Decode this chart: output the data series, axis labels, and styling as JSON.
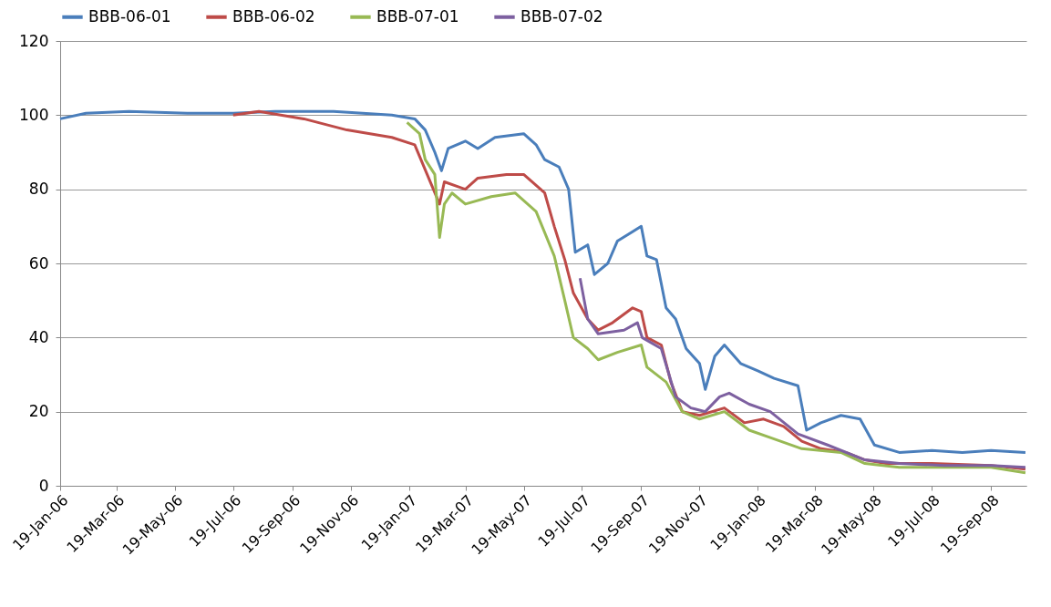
{
  "chart_data": {
    "type": "line",
    "legend": "top",
    "grid": "y",
    "line_style": "solid",
    "marker": "none",
    "xlim": [
      "2006-01-19",
      "2008-10-26"
    ],
    "ylim": [
      0,
      120
    ],
    "yticks": [
      0,
      20,
      40,
      60,
      80,
      100,
      120
    ],
    "xticks": [
      {
        "value": "2006-01-19",
        "label": "19-Jan-06"
      },
      {
        "value": "2006-03-19",
        "label": "19-Mar-06"
      },
      {
        "value": "2006-05-19",
        "label": "19-May-06"
      },
      {
        "value": "2006-07-19",
        "label": "19-Jul-06"
      },
      {
        "value": "2006-09-19",
        "label": "19-Sep-06"
      },
      {
        "value": "2006-11-19",
        "label": "19-Nov-06"
      },
      {
        "value": "2007-01-19",
        "label": "19-Jan-07"
      },
      {
        "value": "2007-03-19",
        "label": "19-Mar-07"
      },
      {
        "value": "2007-05-19",
        "label": "19-May-07"
      },
      {
        "value": "2007-07-19",
        "label": "19-Jul-07"
      },
      {
        "value": "2007-09-19",
        "label": "19-Sep-07"
      },
      {
        "value": "2007-11-19",
        "label": "19-Nov-07"
      },
      {
        "value": "2008-01-19",
        "label": "19-Jan-08"
      },
      {
        "value": "2008-03-19",
        "label": "19-Mar-08"
      },
      {
        "value": "2008-05-19",
        "label": "19-May-08"
      },
      {
        "value": "2008-07-19",
        "label": "19-Jul-08"
      },
      {
        "value": "2008-09-19",
        "label": "19-Sep-08"
      }
    ],
    "series": [
      {
        "name": "BBB-06-01",
        "color": "#4a7ebb",
        "x": [
          "2006-01-19",
          "2006-02-15",
          "2006-04-01",
          "2006-06-01",
          "2006-07-19",
          "2006-09-01",
          "2006-11-01",
          "2007-01-01",
          "2007-01-25",
          "2007-02-05",
          "2007-02-15",
          "2007-02-22",
          "2007-03-01",
          "2007-03-19",
          "2007-04-01",
          "2007-04-19",
          "2007-05-19",
          "2007-06-01",
          "2007-06-10",
          "2007-06-25",
          "2007-07-05",
          "2007-07-12",
          "2007-07-25",
          "2007-08-01",
          "2007-08-15",
          "2007-08-25",
          "2007-09-19",
          "2007-09-25",
          "2007-10-05",
          "2007-10-15",
          "2007-10-25",
          "2007-11-05",
          "2007-11-19",
          "2007-11-25",
          "2007-12-05",
          "2007-12-15",
          "2008-01-01",
          "2008-01-19",
          "2008-02-05",
          "2008-03-01",
          "2008-03-10",
          "2008-03-25",
          "2008-04-15",
          "2008-05-05",
          "2008-05-20",
          "2008-06-15",
          "2008-07-19",
          "2008-08-20",
          "2008-09-19",
          "2008-10-25"
        ],
        "values": [
          99,
          100.5,
          101,
          100.5,
          100.5,
          101,
          101,
          100,
          99,
          96,
          90,
          85,
          91,
          93,
          91,
          94,
          95,
          92,
          88,
          86,
          80,
          63,
          65,
          57,
          60,
          66,
          70,
          62,
          61,
          48,
          45,
          37,
          33,
          26,
          35,
          38,
          33,
          31,
          29,
          27,
          15,
          17,
          19,
          18,
          11,
          9,
          9.5,
          9,
          9.5,
          9
        ]
      },
      {
        "name": "BBB-06-02",
        "color": "#be4b48",
        "x": [
          "2006-07-19",
          "2006-08-15",
          "2006-10-01",
          "2006-11-15",
          "2007-01-01",
          "2007-01-25",
          "2007-02-20",
          "2007-02-25",
          "2007-03-19",
          "2007-04-01",
          "2007-05-01",
          "2007-05-19",
          "2007-06-10",
          "2007-06-20",
          "2007-07-01",
          "2007-07-10",
          "2007-07-25",
          "2007-08-05",
          "2007-08-20",
          "2007-09-10",
          "2007-09-19",
          "2007-09-25",
          "2007-10-10",
          "2007-10-20",
          "2007-11-01",
          "2007-11-19",
          "2007-12-15",
          "2008-01-05",
          "2008-01-25",
          "2008-02-15",
          "2008-03-05",
          "2008-03-25",
          "2008-04-20",
          "2008-05-10",
          "2008-06-01",
          "2008-07-19",
          "2008-09-19",
          "2008-10-25"
        ],
        "values": [
          100,
          101,
          99,
          96,
          94,
          92,
          76,
          82,
          80,
          83,
          84,
          84,
          79,
          70,
          61,
          52,
          45,
          42,
          44,
          48,
          47,
          40,
          38,
          28,
          20,
          19,
          21,
          17,
          18,
          16,
          12,
          10,
          9,
          7,
          6,
          6,
          5.5,
          4.5
        ]
      },
      {
        "name": "BBB-07-01",
        "color": "#98b954",
        "x": [
          "2007-01-17",
          "2007-01-30",
          "2007-02-05",
          "2007-02-15",
          "2007-02-20",
          "2007-02-25",
          "2007-03-05",
          "2007-03-19",
          "2007-04-15",
          "2007-05-10",
          "2007-06-01",
          "2007-06-20",
          "2007-07-01",
          "2007-07-10",
          "2007-07-25",
          "2007-08-05",
          "2007-08-25",
          "2007-09-19",
          "2007-09-25",
          "2007-10-15",
          "2007-11-01",
          "2007-11-19",
          "2007-12-15",
          "2008-01-10",
          "2008-02-01",
          "2008-03-05",
          "2008-04-15",
          "2008-05-10",
          "2008-06-15",
          "2008-08-01",
          "2008-09-19",
          "2008-10-25"
        ],
        "values": [
          98,
          95,
          88,
          84,
          67,
          76,
          79,
          76,
          78,
          79,
          74,
          62,
          50,
          40,
          37,
          34,
          36,
          38,
          32,
          28,
          20,
          18,
          20,
          15,
          13,
          10,
          9,
          6,
          5,
          5,
          5,
          3.5
        ]
      },
      {
        "name": "BBB-07-02",
        "color": "#7d60a0",
        "x": [
          "2007-07-17",
          "2007-07-25",
          "2007-08-05",
          "2007-09-01",
          "2007-09-15",
          "2007-09-20",
          "2007-10-10",
          "2007-10-25",
          "2007-11-10",
          "2007-11-25",
          "2007-12-10",
          "2007-12-20",
          "2008-01-10",
          "2008-02-01",
          "2008-03-01",
          "2008-04-01",
          "2008-05-10",
          "2008-06-15",
          "2008-08-01",
          "2008-09-19",
          "2008-10-25"
        ],
        "values": [
          56,
          45,
          41,
          42,
          44,
          40,
          37,
          24,
          21,
          20,
          24,
          25,
          22,
          20,
          14,
          11,
          7,
          6,
          5.5,
          5.5,
          5
        ]
      }
    ]
  }
}
